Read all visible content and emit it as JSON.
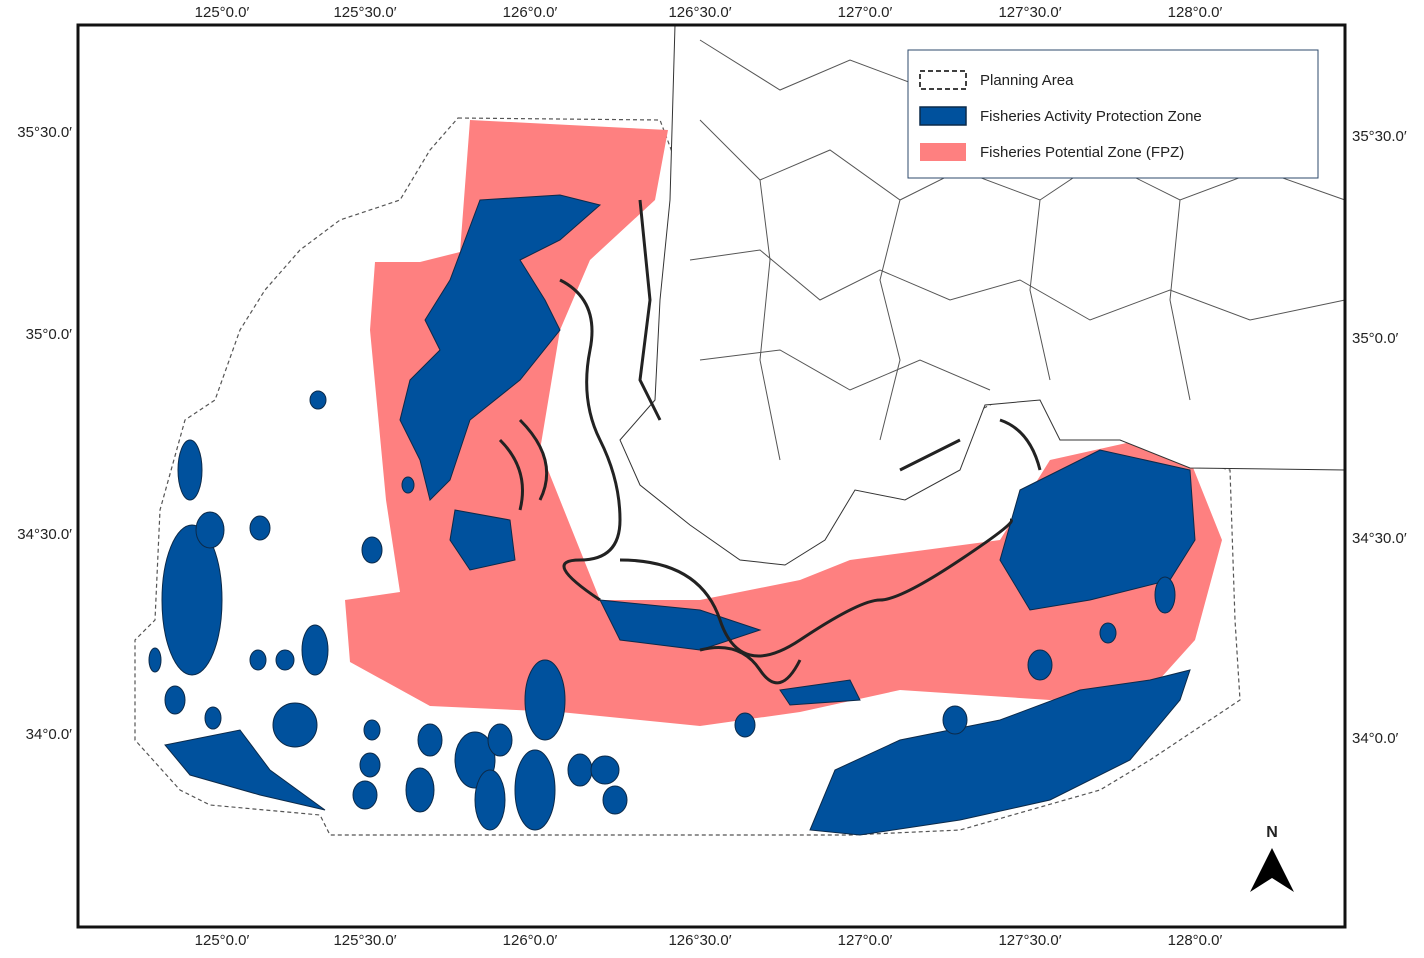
{
  "map": {
    "longitude_labels": [
      "125°0.0′",
      "125°30.0′",
      "126°0.0′",
      "126°30.0′",
      "127°0.0′",
      "127°30.0′",
      "128°0.0′"
    ],
    "latitude_labels": [
      "35°30.0′",
      "35°0.0′",
      "34°30.0′",
      "34°0.0′"
    ],
    "legend": [
      "Planning Area",
      "Fisheries Activity Protection Zone",
      "Fisheries Potential Zone (FPZ)"
    ],
    "north": "N"
  }
}
